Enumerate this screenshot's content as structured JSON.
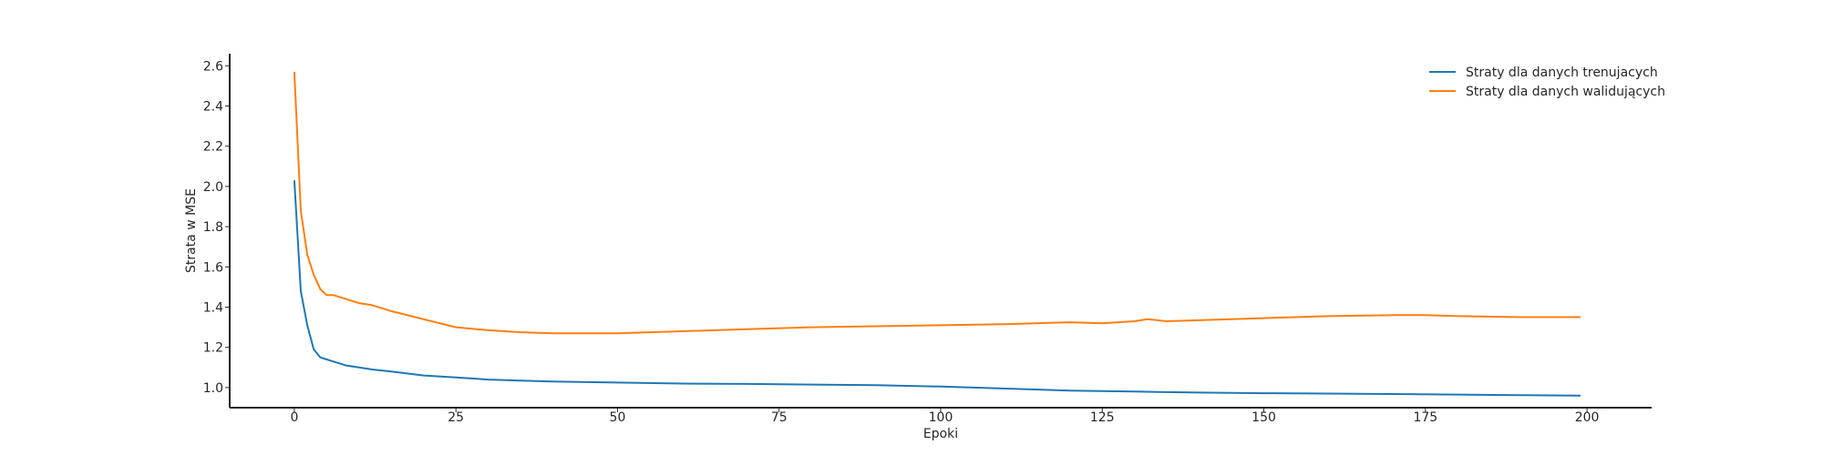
{
  "chart_data": {
    "type": "line",
    "title": "",
    "xlabel": "Epoki",
    "ylabel": "Strata w MSE",
    "xlim": [
      -10,
      210
    ],
    "ylim": [
      0.9,
      2.66
    ],
    "xticks": [
      0,
      25,
      50,
      75,
      100,
      125,
      150,
      175,
      200
    ],
    "yticks": [
      1.0,
      1.2,
      1.4,
      1.6,
      1.8,
      2.0,
      2.2,
      2.4,
      2.6
    ],
    "ytick_decimals": 1,
    "grid": false,
    "legend_position": "top-right",
    "series": [
      {
        "name": "Straty dla danych trenujacych",
        "color": "#1f77b4",
        "x": [
          0,
          1,
          2,
          3,
          4,
          5,
          6,
          8,
          10,
          12,
          15,
          20,
          25,
          30,
          35,
          40,
          50,
          60,
          70,
          80,
          90,
          100,
          110,
          120,
          130,
          140,
          150,
          160,
          170,
          180,
          190,
          199
        ],
        "y": [
          2.03,
          1.48,
          1.31,
          1.19,
          1.15,
          1.14,
          1.13,
          1.11,
          1.1,
          1.09,
          1.08,
          1.06,
          1.05,
          1.04,
          1.035,
          1.03,
          1.025,
          1.02,
          1.018,
          1.015,
          1.012,
          1.005,
          0.995,
          0.985,
          0.98,
          0.975,
          0.972,
          0.97,
          0.968,
          0.965,
          0.962,
          0.96
        ]
      },
      {
        "name": "Straty dla danych walidujących",
        "color": "#ff7f0e",
        "x": [
          0,
          1,
          2,
          3,
          4,
          5,
          6,
          8,
          10,
          12,
          15,
          20,
          25,
          30,
          35,
          40,
          45,
          50,
          55,
          60,
          70,
          80,
          90,
          100,
          110,
          120,
          125,
          130,
          132,
          135,
          150,
          160,
          170,
          175,
          180,
          190,
          199
        ],
        "y": [
          2.57,
          1.88,
          1.66,
          1.56,
          1.49,
          1.46,
          1.46,
          1.44,
          1.42,
          1.41,
          1.38,
          1.34,
          1.3,
          1.285,
          1.275,
          1.27,
          1.27,
          1.27,
          1.275,
          1.28,
          1.29,
          1.3,
          1.305,
          1.31,
          1.315,
          1.325,
          1.32,
          1.33,
          1.34,
          1.33,
          1.345,
          1.355,
          1.36,
          1.36,
          1.355,
          1.35,
          1.35
        ]
      }
    ]
  }
}
